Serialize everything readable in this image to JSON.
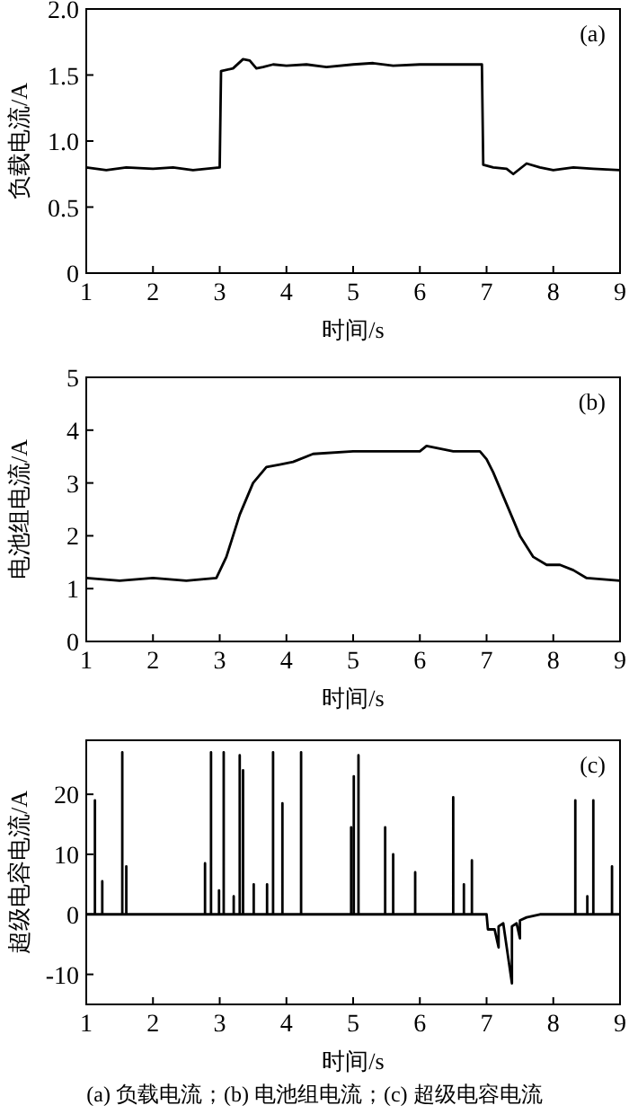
{
  "chart_data": [
    {
      "type": "line",
      "xlabel": "时间/s",
      "ylabel": "负载电流/A",
      "annotations": [
        "(a)"
      ],
      "color": "#000000",
      "xlim": [
        1,
        9
      ],
      "ylim": [
        0,
        2
      ],
      "xticks": [
        1,
        2,
        3,
        4,
        5,
        6,
        7,
        8,
        9
      ],
      "yticks": [
        0,
        0.5,
        {
          "value": 1,
          "label": "1.0"
        },
        1.5,
        {
          "value": 2,
          "label": "2.0"
        }
      ],
      "x": [
        1,
        1.3,
        1.6,
        2,
        2.3,
        2.6,
        3.0,
        3.02,
        3.2,
        3.35,
        3.45,
        3.55,
        3.65,
        3.8,
        4.0,
        4.3,
        4.6,
        5.0,
        5.3,
        5.6,
        6.0,
        6.3,
        6.6,
        6.93,
        6.95,
        7.1,
        7.3,
        7.4,
        7.6,
        7.8,
        8.0,
        8.3,
        8.6,
        9
      ],
      "values": [
        0.8,
        0.78,
        0.8,
        0.79,
        0.8,
        0.78,
        0.8,
        1.53,
        1.55,
        1.62,
        1.61,
        1.55,
        1.56,
        1.58,
        1.57,
        1.58,
        1.56,
        1.58,
        1.59,
        1.57,
        1.58,
        1.58,
        1.58,
        1.58,
        0.82,
        0.8,
        0.79,
        0.75,
        0.83,
        0.8,
        0.78,
        0.8,
        0.79,
        0.78
      ]
    },
    {
      "type": "line",
      "xlabel": "时间/s",
      "ylabel": "电池组电流/A",
      "annotations": [
        "(b)"
      ],
      "color": "#000000",
      "xlim": [
        1,
        9
      ],
      "ylim": [
        0,
        5
      ],
      "xticks": [
        1,
        2,
        3,
        4,
        5,
        6,
        7,
        8,
        9
      ],
      "yticks": [
        0,
        1,
        2,
        3,
        4,
        5
      ],
      "x": [
        1,
        1.5,
        2,
        2.5,
        2.95,
        3.1,
        3.3,
        3.5,
        3.7,
        3.9,
        4.1,
        4.4,
        5,
        5.5,
        6,
        6.1,
        6.5,
        6.9,
        7.0,
        7.1,
        7.3,
        7.5,
        7.7,
        7.9,
        8.1,
        8.3,
        8.5,
        9
      ],
      "values": [
        1.2,
        1.15,
        1.2,
        1.15,
        1.2,
        1.6,
        2.4,
        3.0,
        3.3,
        3.35,
        3.4,
        3.55,
        3.6,
        3.6,
        3.6,
        3.7,
        3.6,
        3.6,
        3.45,
        3.2,
        2.6,
        2.0,
        1.6,
        1.45,
        1.45,
        1.35,
        1.2,
        1.15
      ]
    },
    {
      "type": "line",
      "xlabel": "时间/s",
      "ylabel": "超级电容电流/A",
      "annotations": [
        "(c)",
        "(a) 负载电流；(b) 电池组电流；(c) 超级电容电流"
      ],
      "color": "#000000",
      "xlim": [
        1,
        9
      ],
      "ylim": [
        -15,
        29
      ],
      "xticks": [
        1,
        2,
        3,
        4,
        5,
        6,
        7,
        8,
        9
      ],
      "yticks": [
        -10,
        0,
        10,
        20
      ],
      "x": [
        1,
        1.13,
        1.13,
        1.13,
        1.24,
        1.24,
        1.24,
        1.54,
        1.54,
        1.54,
        1.6,
        1.6,
        1.6,
        2.78,
        2.78,
        2.78,
        2.87,
        2.87,
        2.87,
        2.99,
        2.99,
        2.99,
        3.06,
        3.06,
        3.06,
        3.21,
        3.21,
        3.21,
        3.3,
        3.3,
        3.3,
        3.35,
        3.35,
        3.35,
        3.51,
        3.51,
        3.51,
        3.71,
        3.71,
        3.71,
        3.8,
        3.8,
        3.8,
        3.94,
        3.94,
        3.94,
        4.22,
        4.22,
        4.22,
        4.97,
        4.97,
        4.97,
        5.01,
        5.01,
        5.01,
        5.08,
        5.08,
        5.08,
        5.48,
        5.48,
        5.48,
        5.6,
        5.6,
        5.6,
        5.93,
        5.93,
        5.93,
        6.5,
        6.5,
        6.5,
        6.66,
        6.66,
        6.66,
        6.78,
        6.78,
        6.78,
        7.0,
        7.02,
        7.12,
        7.18,
        7.18,
        7.25,
        7.38,
        7.38,
        7.45,
        7.5,
        7.5,
        7.6,
        7.8,
        8.33,
        8.33,
        8.33,
        8.51,
        8.51,
        8.51,
        8.6,
        8.6,
        8.6,
        8.88,
        8.88,
        8.88,
        9
      ],
      "values": [
        0,
        0,
        19,
        0,
        0,
        5.5,
        0,
        0,
        27,
        0,
        0,
        8,
        0,
        0,
        8.5,
        0,
        0,
        27,
        0,
        0,
        4,
        0,
        0,
        27,
        0,
        0,
        3,
        0,
        0,
        26.5,
        0,
        0,
        24,
        0,
        0,
        5,
        0,
        0,
        5,
        0,
        0,
        27,
        0,
        0,
        18.5,
        0,
        0,
        27,
        0,
        0,
        14.5,
        0,
        0,
        23,
        0,
        0,
        26.5,
        0,
        0,
        14.5,
        0,
        0,
        10,
        0,
        0,
        7,
        0,
        0,
        19.5,
        0,
        0,
        5,
        0,
        0,
        9,
        0,
        0,
        -2.5,
        -2.5,
        -5.5,
        -2,
        -1.5,
        -11.5,
        -2,
        -1.5,
        -4,
        -1,
        -0.5,
        0,
        0,
        19,
        0,
        0,
        3,
        0,
        0,
        19,
        0,
        0,
        8,
        0,
        0
      ]
    }
  ]
}
